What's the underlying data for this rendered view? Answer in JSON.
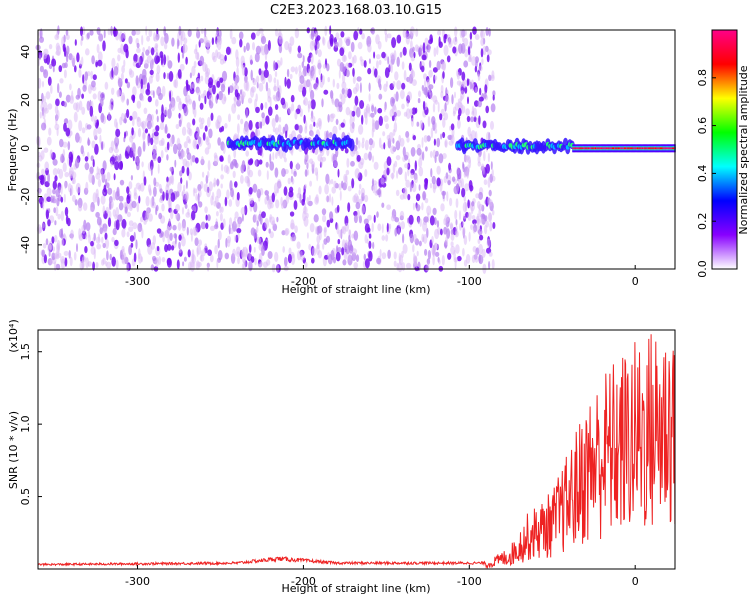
{
  "figure": {
    "title": "C2E3.2023.168.03.10.G15"
  },
  "chart_data": [
    {
      "type": "heatmap",
      "xlabel": "Height of straight line (km)",
      "ylabel": "Frequency (Hz)",
      "xlim": [
        -360,
        24
      ],
      "ylim": [
        -50,
        49
      ],
      "xticks": [
        -300,
        -200,
        -100,
        0
      ],
      "yticks": [
        -40,
        -20,
        0,
        20,
        40
      ],
      "colorbar": {
        "label": "Normalized spectral amplitude",
        "range": [
          0,
          1
        ],
        "ticks": [
          0.0,
          0.2,
          0.4,
          0.6,
          0.8
        ],
        "colors": [
          "#ffffff",
          "#8800ff",
          "#0000ff",
          "#00ffff",
          "#00ff00",
          "#ffff00",
          "#ff0000",
          "#ff0088"
        ]
      },
      "features": [
        {
          "name": "noise",
          "x_range": [
            -360,
            -85
          ],
          "y_range": [
            -50,
            49
          ],
          "level": 0.15
        },
        {
          "name": "band",
          "x_range": [
            -245,
            -170
          ],
          "freq": 2,
          "level": 0.4
        },
        {
          "name": "band",
          "x_range": [
            -107,
            -38
          ],
          "freq": 1,
          "level": 0.5
        },
        {
          "name": "band",
          "x_range": [
            -38,
            24
          ],
          "freq": 0,
          "level": 0.95
        }
      ]
    },
    {
      "type": "line",
      "xlabel": "Height of straight line (km)",
      "ylabel": "SNR (10 * v/v)",
      "yscale_label": "(x10⁴)",
      "xlim": [
        -360,
        24
      ],
      "ylim": [
        0,
        1.65
      ],
      "xticks": [
        -300,
        -200,
        -100,
        0
      ],
      "yticks": [
        0.5,
        1.0,
        1.5
      ],
      "ytick_labels": [
        "0.5",
        "1.0",
        "1.5"
      ],
      "color": "#ee2222",
      "envelope": [
        {
          "x": -360,
          "y": 0.03
        },
        {
          "x": -240,
          "y": 0.04
        },
        {
          "x": -215,
          "y": 0.07
        },
        {
          "x": -180,
          "y": 0.04
        },
        {
          "x": -90,
          "y": 0.04
        },
        {
          "x": -75,
          "y": 0.15
        },
        {
          "x": -65,
          "y": 0.35
        },
        {
          "x": -50,
          "y": 0.5
        },
        {
          "x": -40,
          "y": 0.75
        },
        {
          "x": -30,
          "y": 1.05
        },
        {
          "x": -20,
          "y": 1.25
        },
        {
          "x": -10,
          "y": 1.35
        },
        {
          "x": 0,
          "y": 1.45
        },
        {
          "x": 12,
          "y": 1.55
        },
        {
          "x": 24,
          "y": 1.62
        }
      ]
    }
  ]
}
